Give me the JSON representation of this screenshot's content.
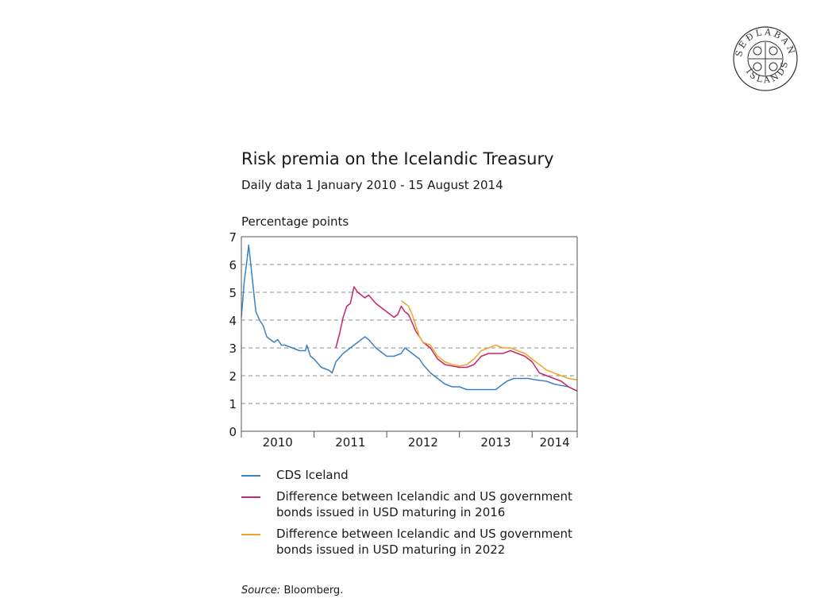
{
  "header": {
    "logo": "Sedlabanki Islands seal",
    "logo_text": "SEÐLABANKI ÍSLANDS"
  },
  "title": "Risk premia on the Icelandic Treasury",
  "subtitle": "Daily data 1 January 2010 - 15 August 2014",
  "source": {
    "label": "Source:",
    "text": "Bloomberg."
  },
  "colors": {
    "cds": "#3b82bf",
    "usd2016": "#c8236b",
    "usd2022": "#f2a52a",
    "grid": "#8c8c8c",
    "axis": "#555555"
  },
  "chart_data": {
    "type": "line",
    "ylabel": "Percentage points",
    "ylim": [
      0,
      7
    ],
    "yticks": [
      "0",
      "1",
      "2",
      "3",
      "4",
      "5",
      "6",
      "7"
    ],
    "xlim": [
      2010.0,
      2014.62
    ],
    "xticks": [
      {
        "label": "2010",
        "year": 2010
      },
      {
        "label": "2011",
        "year": 2011
      },
      {
        "label": "2012",
        "year": 2012
      },
      {
        "label": "2013",
        "year": 2013
      },
      {
        "label": "2014",
        "year": 2014
      }
    ],
    "grid": "horizontal dashed",
    "legend_position": "bottom",
    "series": [
      {
        "name": "CDS Iceland",
        "color": "#3b82bf",
        "points": [
          [
            2010.0,
            4.1
          ],
          [
            2010.04,
            5.4
          ],
          [
            2010.08,
            6.2
          ],
          [
            2010.1,
            6.7
          ],
          [
            2010.13,
            6.0
          ],
          [
            2010.17,
            5.0
          ],
          [
            2010.2,
            4.3
          ],
          [
            2010.25,
            4.0
          ],
          [
            2010.3,
            3.8
          ],
          [
            2010.35,
            3.4
          ],
          [
            2010.4,
            3.3
          ],
          [
            2010.45,
            3.2
          ],
          [
            2010.5,
            3.3
          ],
          [
            2010.55,
            3.1
          ],
          [
            2010.6,
            3.1
          ],
          [
            2010.7,
            3.0
          ],
          [
            2010.8,
            2.9
          ],
          [
            2010.88,
            2.9
          ],
          [
            2010.9,
            3.1
          ],
          [
            2010.95,
            2.7
          ],
          [
            2011.0,
            2.6
          ],
          [
            2011.1,
            2.3
          ],
          [
            2011.2,
            2.2
          ],
          [
            2011.25,
            2.1
          ],
          [
            2011.3,
            2.5
          ],
          [
            2011.4,
            2.8
          ],
          [
            2011.5,
            3.0
          ],
          [
            2011.6,
            3.2
          ],
          [
            2011.7,
            3.4
          ],
          [
            2011.75,
            3.3
          ],
          [
            2011.85,
            3.0
          ],
          [
            2011.95,
            2.8
          ],
          [
            2012.0,
            2.7
          ],
          [
            2012.1,
            2.7
          ],
          [
            2012.2,
            2.8
          ],
          [
            2012.25,
            3.0
          ],
          [
            2012.3,
            2.9
          ],
          [
            2012.4,
            2.7
          ],
          [
            2012.45,
            2.6
          ],
          [
            2012.5,
            2.4
          ],
          [
            2012.6,
            2.1
          ],
          [
            2012.7,
            1.9
          ],
          [
            2012.8,
            1.7
          ],
          [
            2012.9,
            1.6
          ],
          [
            2013.0,
            1.6
          ],
          [
            2013.1,
            1.5
          ],
          [
            2013.2,
            1.5
          ],
          [
            2013.3,
            1.5
          ],
          [
            2013.4,
            1.5
          ],
          [
            2013.5,
            1.5
          ],
          [
            2013.55,
            1.6
          ],
          [
            2013.65,
            1.8
          ],
          [
            2013.75,
            1.9
          ],
          [
            2013.85,
            1.9
          ],
          [
            2013.95,
            1.9
          ],
          [
            2014.05,
            1.85
          ],
          [
            2014.2,
            1.8
          ],
          [
            2014.3,
            1.7
          ],
          [
            2014.4,
            1.65
          ],
          [
            2014.5,
            1.6
          ],
          [
            2014.62,
            1.45
          ]
        ]
      },
      {
        "name": "Difference between Icelandic and US government bonds issued in USD maturing in 2016",
        "color": "#c8236b",
        "points": [
          [
            2011.3,
            3.0
          ],
          [
            2011.35,
            3.5
          ],
          [
            2011.4,
            4.1
          ],
          [
            2011.45,
            4.5
          ],
          [
            2011.5,
            4.6
          ],
          [
            2011.55,
            5.2
          ],
          [
            2011.6,
            5.0
          ],
          [
            2011.65,
            4.9
          ],
          [
            2011.7,
            4.8
          ],
          [
            2011.75,
            4.9
          ],
          [
            2011.85,
            4.6
          ],
          [
            2011.95,
            4.4
          ],
          [
            2012.0,
            4.3
          ],
          [
            2012.05,
            4.2
          ],
          [
            2012.1,
            4.1
          ],
          [
            2012.15,
            4.2
          ],
          [
            2012.2,
            4.5
          ],
          [
            2012.25,
            4.3
          ],
          [
            2012.3,
            4.2
          ],
          [
            2012.35,
            3.9
          ],
          [
            2012.4,
            3.6
          ],
          [
            2012.45,
            3.4
          ],
          [
            2012.5,
            3.2
          ],
          [
            2012.6,
            3.0
          ],
          [
            2012.65,
            2.8
          ],
          [
            2012.7,
            2.6
          ],
          [
            2012.8,
            2.4
          ],
          [
            2012.9,
            2.35
          ],
          [
            2013.0,
            2.3
          ],
          [
            2013.1,
            2.3
          ],
          [
            2013.2,
            2.4
          ],
          [
            2013.3,
            2.7
          ],
          [
            2013.4,
            2.8
          ],
          [
            2013.5,
            2.8
          ],
          [
            2013.6,
            2.8
          ],
          [
            2013.7,
            2.9
          ],
          [
            2013.8,
            2.8
          ],
          [
            2013.9,
            2.7
          ],
          [
            2014.0,
            2.5
          ],
          [
            2014.1,
            2.1
          ],
          [
            2014.2,
            2.0
          ],
          [
            2014.3,
            1.9
          ],
          [
            2014.4,
            1.8
          ],
          [
            2014.5,
            1.6
          ],
          [
            2014.62,
            1.45
          ]
        ]
      },
      {
        "name": "Difference between Icelandic and US government bonds issued in USD maturing in 2022",
        "color": "#f2a52a",
        "points": [
          [
            2012.2,
            4.7
          ],
          [
            2012.25,
            4.6
          ],
          [
            2012.3,
            4.5
          ],
          [
            2012.35,
            4.2
          ],
          [
            2012.4,
            3.8
          ],
          [
            2012.45,
            3.4
          ],
          [
            2012.5,
            3.2
          ],
          [
            2012.6,
            3.1
          ],
          [
            2012.65,
            2.9
          ],
          [
            2012.7,
            2.7
          ],
          [
            2012.8,
            2.5
          ],
          [
            2012.9,
            2.4
          ],
          [
            2013.0,
            2.35
          ],
          [
            2013.1,
            2.4
          ],
          [
            2013.2,
            2.6
          ],
          [
            2013.3,
            2.9
          ],
          [
            2013.4,
            3.0
          ],
          [
            2013.5,
            3.1
          ],
          [
            2013.6,
            3.0
          ],
          [
            2013.7,
            3.0
          ],
          [
            2013.8,
            2.9
          ],
          [
            2013.9,
            2.8
          ],
          [
            2014.0,
            2.6
          ],
          [
            2014.1,
            2.4
          ],
          [
            2014.2,
            2.2
          ],
          [
            2014.3,
            2.1
          ],
          [
            2014.4,
            2.0
          ],
          [
            2014.5,
            1.9
          ],
          [
            2014.62,
            1.85
          ]
        ]
      }
    ]
  }
}
